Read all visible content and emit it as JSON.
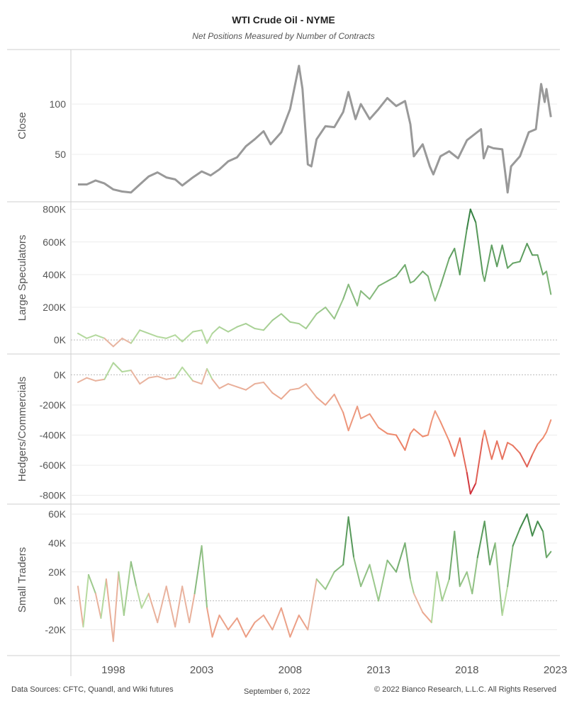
{
  "title": "WTI Crude Oil - NYME",
  "subtitle": "Net Positions Measured by Number of Contracts",
  "footer": {
    "sources": "Data Sources: CFTC, Quandl, and Wiki futures",
    "date": "September 6, 2022",
    "copyright": "© 2022 Bianco Research, L.L.C. All Rights Reserved"
  },
  "colors": {
    "close": "#999999",
    "green_light": "#b7dba0",
    "green_dark": "#2a7a3a",
    "red_light": "#e8b7a3",
    "red_mid": "#ef8a6c",
    "red_dark": "#c81a2e",
    "grid": "#ececec",
    "zero_line": "#bbbbbb"
  },
  "chart_data": {
    "type": "line",
    "x_axis": {
      "ticks": [
        "1998",
        "2003",
        "2008",
        "2013",
        "2018",
        "2023"
      ],
      "range": [
        1995.6,
        2023.1
      ]
    },
    "panels": [
      {
        "name": "close",
        "ylabel": "Close",
        "ylim": [
          7,
          150
        ],
        "ticks": [
          50,
          100
        ],
        "tick_labels": [
          "50",
          "100"
        ],
        "zero_line": false,
        "color_mode": "solid",
        "series": [
          [
            1996.0,
            20
          ],
          [
            1996.5,
            20
          ],
          [
            1997.0,
            24
          ],
          [
            1997.5,
            21
          ],
          [
            1998.0,
            15
          ],
          [
            1998.5,
            13
          ],
          [
            1999.0,
            12
          ],
          [
            1999.5,
            20
          ],
          [
            2000.0,
            28
          ],
          [
            2000.5,
            32
          ],
          [
            2001.0,
            27
          ],
          [
            2001.5,
            25
          ],
          [
            2001.9,
            19
          ],
          [
            2002.5,
            27
          ],
          [
            2003.0,
            33
          ],
          [
            2003.5,
            29
          ],
          [
            2004.0,
            35
          ],
          [
            2004.5,
            43
          ],
          [
            2005.0,
            47
          ],
          [
            2005.5,
            58
          ],
          [
            2006.0,
            65
          ],
          [
            2006.5,
            73
          ],
          [
            2006.9,
            60
          ],
          [
            2007.5,
            72
          ],
          [
            2008.0,
            95
          ],
          [
            2008.5,
            138
          ],
          [
            2008.7,
            115
          ],
          [
            2009.0,
            40
          ],
          [
            2009.2,
            38
          ],
          [
            2009.5,
            65
          ],
          [
            2010.0,
            78
          ],
          [
            2010.5,
            77
          ],
          [
            2011.0,
            92
          ],
          [
            2011.3,
            112
          ],
          [
            2011.7,
            85
          ],
          [
            2012.0,
            100
          ],
          [
            2012.5,
            85
          ],
          [
            2013.0,
            95
          ],
          [
            2013.5,
            106
          ],
          [
            2014.0,
            98
          ],
          [
            2014.5,
            103
          ],
          [
            2014.8,
            80
          ],
          [
            2015.0,
            48
          ],
          [
            2015.5,
            60
          ],
          [
            2015.9,
            38
          ],
          [
            2016.1,
            30
          ],
          [
            2016.5,
            48
          ],
          [
            2017.0,
            53
          ],
          [
            2017.5,
            46
          ],
          [
            2018.0,
            64
          ],
          [
            2018.8,
            75
          ],
          [
            2018.95,
            46
          ],
          [
            2019.2,
            58
          ],
          [
            2019.5,
            56
          ],
          [
            2020.0,
            55
          ],
          [
            2020.25,
            20
          ],
          [
            2020.3,
            12
          ],
          [
            2020.5,
            38
          ],
          [
            2021.0,
            48
          ],
          [
            2021.5,
            72
          ],
          [
            2021.9,
            75
          ],
          [
            2022.2,
            120
          ],
          [
            2022.4,
            102
          ],
          [
            2022.5,
            115
          ],
          [
            2022.75,
            87
          ]
        ]
      },
      {
        "name": "large_speculators",
        "ylabel": "Large Speculators",
        "ylim": [
          -60000,
          820000
        ],
        "ticks": [
          0,
          200000,
          400000,
          600000,
          800000
        ],
        "tick_labels": [
          "0K",
          "200K",
          "400K",
          "600K",
          "800K"
        ],
        "zero_line": true,
        "color_mode": "green_red",
        "series": [
          [
            1996.0,
            40000
          ],
          [
            1996.5,
            10000
          ],
          [
            1997.0,
            30000
          ],
          [
            1997.5,
            10000
          ],
          [
            1998.0,
            -40000
          ],
          [
            1998.5,
            10000
          ],
          [
            1999.0,
            -20000
          ],
          [
            1999.5,
            60000
          ],
          [
            2000.0,
            40000
          ],
          [
            2000.5,
            20000
          ],
          [
            2001.0,
            10000
          ],
          [
            2001.5,
            30000
          ],
          [
            2001.9,
            -10000
          ],
          [
            2002.5,
            50000
          ],
          [
            2003.0,
            60000
          ],
          [
            2003.3,
            -20000
          ],
          [
            2003.6,
            40000
          ],
          [
            2004.0,
            80000
          ],
          [
            2004.5,
            50000
          ],
          [
            2005.0,
            80000
          ],
          [
            2005.5,
            100000
          ],
          [
            2006.0,
            70000
          ],
          [
            2006.5,
            60000
          ],
          [
            2007.0,
            120000
          ],
          [
            2007.5,
            160000
          ],
          [
            2008.0,
            110000
          ],
          [
            2008.5,
            100000
          ],
          [
            2008.9,
            70000
          ],
          [
            2009.5,
            160000
          ],
          [
            2010.0,
            200000
          ],
          [
            2010.5,
            130000
          ],
          [
            2011.0,
            250000
          ],
          [
            2011.3,
            340000
          ],
          [
            2011.8,
            210000
          ],
          [
            2012.0,
            300000
          ],
          [
            2012.5,
            250000
          ],
          [
            2013.0,
            330000
          ],
          [
            2013.5,
            360000
          ],
          [
            2014.0,
            390000
          ],
          [
            2014.5,
            460000
          ],
          [
            2014.8,
            350000
          ],
          [
            2015.0,
            360000
          ],
          [
            2015.5,
            420000
          ],
          [
            2015.8,
            390000
          ],
          [
            2016.0,
            310000
          ],
          [
            2016.2,
            240000
          ],
          [
            2016.5,
            330000
          ],
          [
            2017.0,
            500000
          ],
          [
            2017.3,
            560000
          ],
          [
            2017.6,
            400000
          ],
          [
            2018.0,
            680000
          ],
          [
            2018.2,
            800000
          ],
          [
            2018.5,
            720000
          ],
          [
            2018.9,
            400000
          ],
          [
            2019.0,
            360000
          ],
          [
            2019.4,
            580000
          ],
          [
            2019.7,
            450000
          ],
          [
            2020.0,
            580000
          ],
          [
            2020.3,
            440000
          ],
          [
            2020.6,
            470000
          ],
          [
            2021.0,
            480000
          ],
          [
            2021.4,
            590000
          ],
          [
            2021.7,
            520000
          ],
          [
            2022.0,
            520000
          ],
          [
            2022.3,
            400000
          ],
          [
            2022.5,
            420000
          ],
          [
            2022.75,
            280000
          ]
        ]
      },
      {
        "name": "hedgers_commercials",
        "ylabel": "Hedgers/Commercials",
        "ylim": [
          -830000,
          110000
        ],
        "ticks": [
          -800000,
          -600000,
          -400000,
          -200000,
          0
        ],
        "tick_labels": [
          "-800K",
          "-600K",
          "-400K",
          "-200K",
          "0K"
        ],
        "zero_line": true,
        "color_mode": "green_red",
        "series": [
          [
            1996.0,
            -50000
          ],
          [
            1996.5,
            -20000
          ],
          [
            1997.0,
            -40000
          ],
          [
            1997.5,
            -30000
          ],
          [
            1998.0,
            80000
          ],
          [
            1998.5,
            20000
          ],
          [
            1999.0,
            30000
          ],
          [
            1999.5,
            -60000
          ],
          [
            2000.0,
            -20000
          ],
          [
            2000.5,
            -10000
          ],
          [
            2001.0,
            -30000
          ],
          [
            2001.5,
            -20000
          ],
          [
            2001.9,
            50000
          ],
          [
            2002.5,
            -40000
          ],
          [
            2003.0,
            -60000
          ],
          [
            2003.3,
            40000
          ],
          [
            2003.6,
            -30000
          ],
          [
            2004.0,
            -90000
          ],
          [
            2004.5,
            -60000
          ],
          [
            2005.0,
            -80000
          ],
          [
            2005.5,
            -100000
          ],
          [
            2006.0,
            -60000
          ],
          [
            2006.5,
            -50000
          ],
          [
            2007.0,
            -120000
          ],
          [
            2007.5,
            -160000
          ],
          [
            2008.0,
            -100000
          ],
          [
            2008.5,
            -90000
          ],
          [
            2008.9,
            -60000
          ],
          [
            2009.5,
            -150000
          ],
          [
            2010.0,
            -200000
          ],
          [
            2010.5,
            -130000
          ],
          [
            2011.0,
            -250000
          ],
          [
            2011.3,
            -370000
          ],
          [
            2011.8,
            -210000
          ],
          [
            2012.0,
            -290000
          ],
          [
            2012.5,
            -260000
          ],
          [
            2013.0,
            -350000
          ],
          [
            2013.5,
            -390000
          ],
          [
            2014.0,
            -400000
          ],
          [
            2014.5,
            -500000
          ],
          [
            2014.8,
            -390000
          ],
          [
            2015.0,
            -360000
          ],
          [
            2015.5,
            -410000
          ],
          [
            2015.8,
            -400000
          ],
          [
            2016.0,
            -310000
          ],
          [
            2016.2,
            -240000
          ],
          [
            2016.5,
            -310000
          ],
          [
            2017.0,
            -440000
          ],
          [
            2017.3,
            -540000
          ],
          [
            2017.6,
            -420000
          ],
          [
            2018.0,
            -650000
          ],
          [
            2018.2,
            -790000
          ],
          [
            2018.5,
            -720000
          ],
          [
            2018.9,
            -420000
          ],
          [
            2019.0,
            -370000
          ],
          [
            2019.4,
            -560000
          ],
          [
            2019.7,
            -440000
          ],
          [
            2020.0,
            -560000
          ],
          [
            2020.3,
            -450000
          ],
          [
            2020.6,
            -470000
          ],
          [
            2021.0,
            -520000
          ],
          [
            2021.4,
            -610000
          ],
          [
            2021.7,
            -530000
          ],
          [
            2022.0,
            -460000
          ],
          [
            2022.3,
            -420000
          ],
          [
            2022.5,
            -380000
          ],
          [
            2022.75,
            -300000
          ]
        ]
      },
      {
        "name": "small_traders",
        "ylabel": "Small Traders",
        "ylim": [
          -35000,
          64000
        ],
        "ticks": [
          -20000,
          0,
          20000,
          40000,
          60000
        ],
        "tick_labels": [
          "-20K",
          "0K",
          "20K",
          "40K",
          "60K"
        ],
        "zero_line": true,
        "color_mode": "green_red",
        "series": [
          [
            1996.0,
            10000
          ],
          [
            1996.3,
            -18000
          ],
          [
            1996.6,
            18000
          ],
          [
            1997.0,
            5000
          ],
          [
            1997.3,
            -12000
          ],
          [
            1997.6,
            15000
          ],
          [
            1998.0,
            -28000
          ],
          [
            1998.3,
            20000
          ],
          [
            1998.6,
            -10000
          ],
          [
            1999.0,
            27000
          ],
          [
            1999.3,
            10000
          ],
          [
            1999.6,
            -5000
          ],
          [
            2000.0,
            5000
          ],
          [
            2000.5,
            -15000
          ],
          [
            2001.0,
            10000
          ],
          [
            2001.5,
            -18000
          ],
          [
            2001.9,
            10000
          ],
          [
            2002.3,
            -15000
          ],
          [
            2002.6,
            5000
          ],
          [
            2003.0,
            38000
          ],
          [
            2003.3,
            -5000
          ],
          [
            2003.6,
            -25000
          ],
          [
            2004.0,
            -10000
          ],
          [
            2004.5,
            -20000
          ],
          [
            2005.0,
            -12000
          ],
          [
            2005.5,
            -25000
          ],
          [
            2006.0,
            -15000
          ],
          [
            2006.5,
            -10000
          ],
          [
            2007.0,
            -20000
          ],
          [
            2007.5,
            -5000
          ],
          [
            2008.0,
            -25000
          ],
          [
            2008.5,
            -10000
          ],
          [
            2009.0,
            -20000
          ],
          [
            2009.5,
            15000
          ],
          [
            2010.0,
            8000
          ],
          [
            2010.5,
            20000
          ],
          [
            2011.0,
            25000
          ],
          [
            2011.3,
            58000
          ],
          [
            2011.6,
            30000
          ],
          [
            2012.0,
            10000
          ],
          [
            2012.5,
            25000
          ],
          [
            2013.0,
            0
          ],
          [
            2013.5,
            28000
          ],
          [
            2014.0,
            20000
          ],
          [
            2014.5,
            40000
          ],
          [
            2014.8,
            15000
          ],
          [
            2015.0,
            5000
          ],
          [
            2015.5,
            -8000
          ],
          [
            2016.0,
            -15000
          ],
          [
            2016.3,
            20000
          ],
          [
            2016.6,
            0
          ],
          [
            2017.0,
            15000
          ],
          [
            2017.3,
            48000
          ],
          [
            2017.6,
            10000
          ],
          [
            2018.0,
            20000
          ],
          [
            2018.3,
            5000
          ],
          [
            2018.6,
            30000
          ],
          [
            2019.0,
            55000
          ],
          [
            2019.3,
            25000
          ],
          [
            2019.6,
            40000
          ],
          [
            2020.0,
            -10000
          ],
          [
            2020.3,
            10000
          ],
          [
            2020.6,
            38000
          ],
          [
            2021.0,
            50000
          ],
          [
            2021.4,
            60000
          ],
          [
            2021.7,
            45000
          ],
          [
            2022.0,
            55000
          ],
          [
            2022.3,
            48000
          ],
          [
            2022.5,
            30000
          ],
          [
            2022.75,
            34000
          ]
        ]
      }
    ]
  }
}
